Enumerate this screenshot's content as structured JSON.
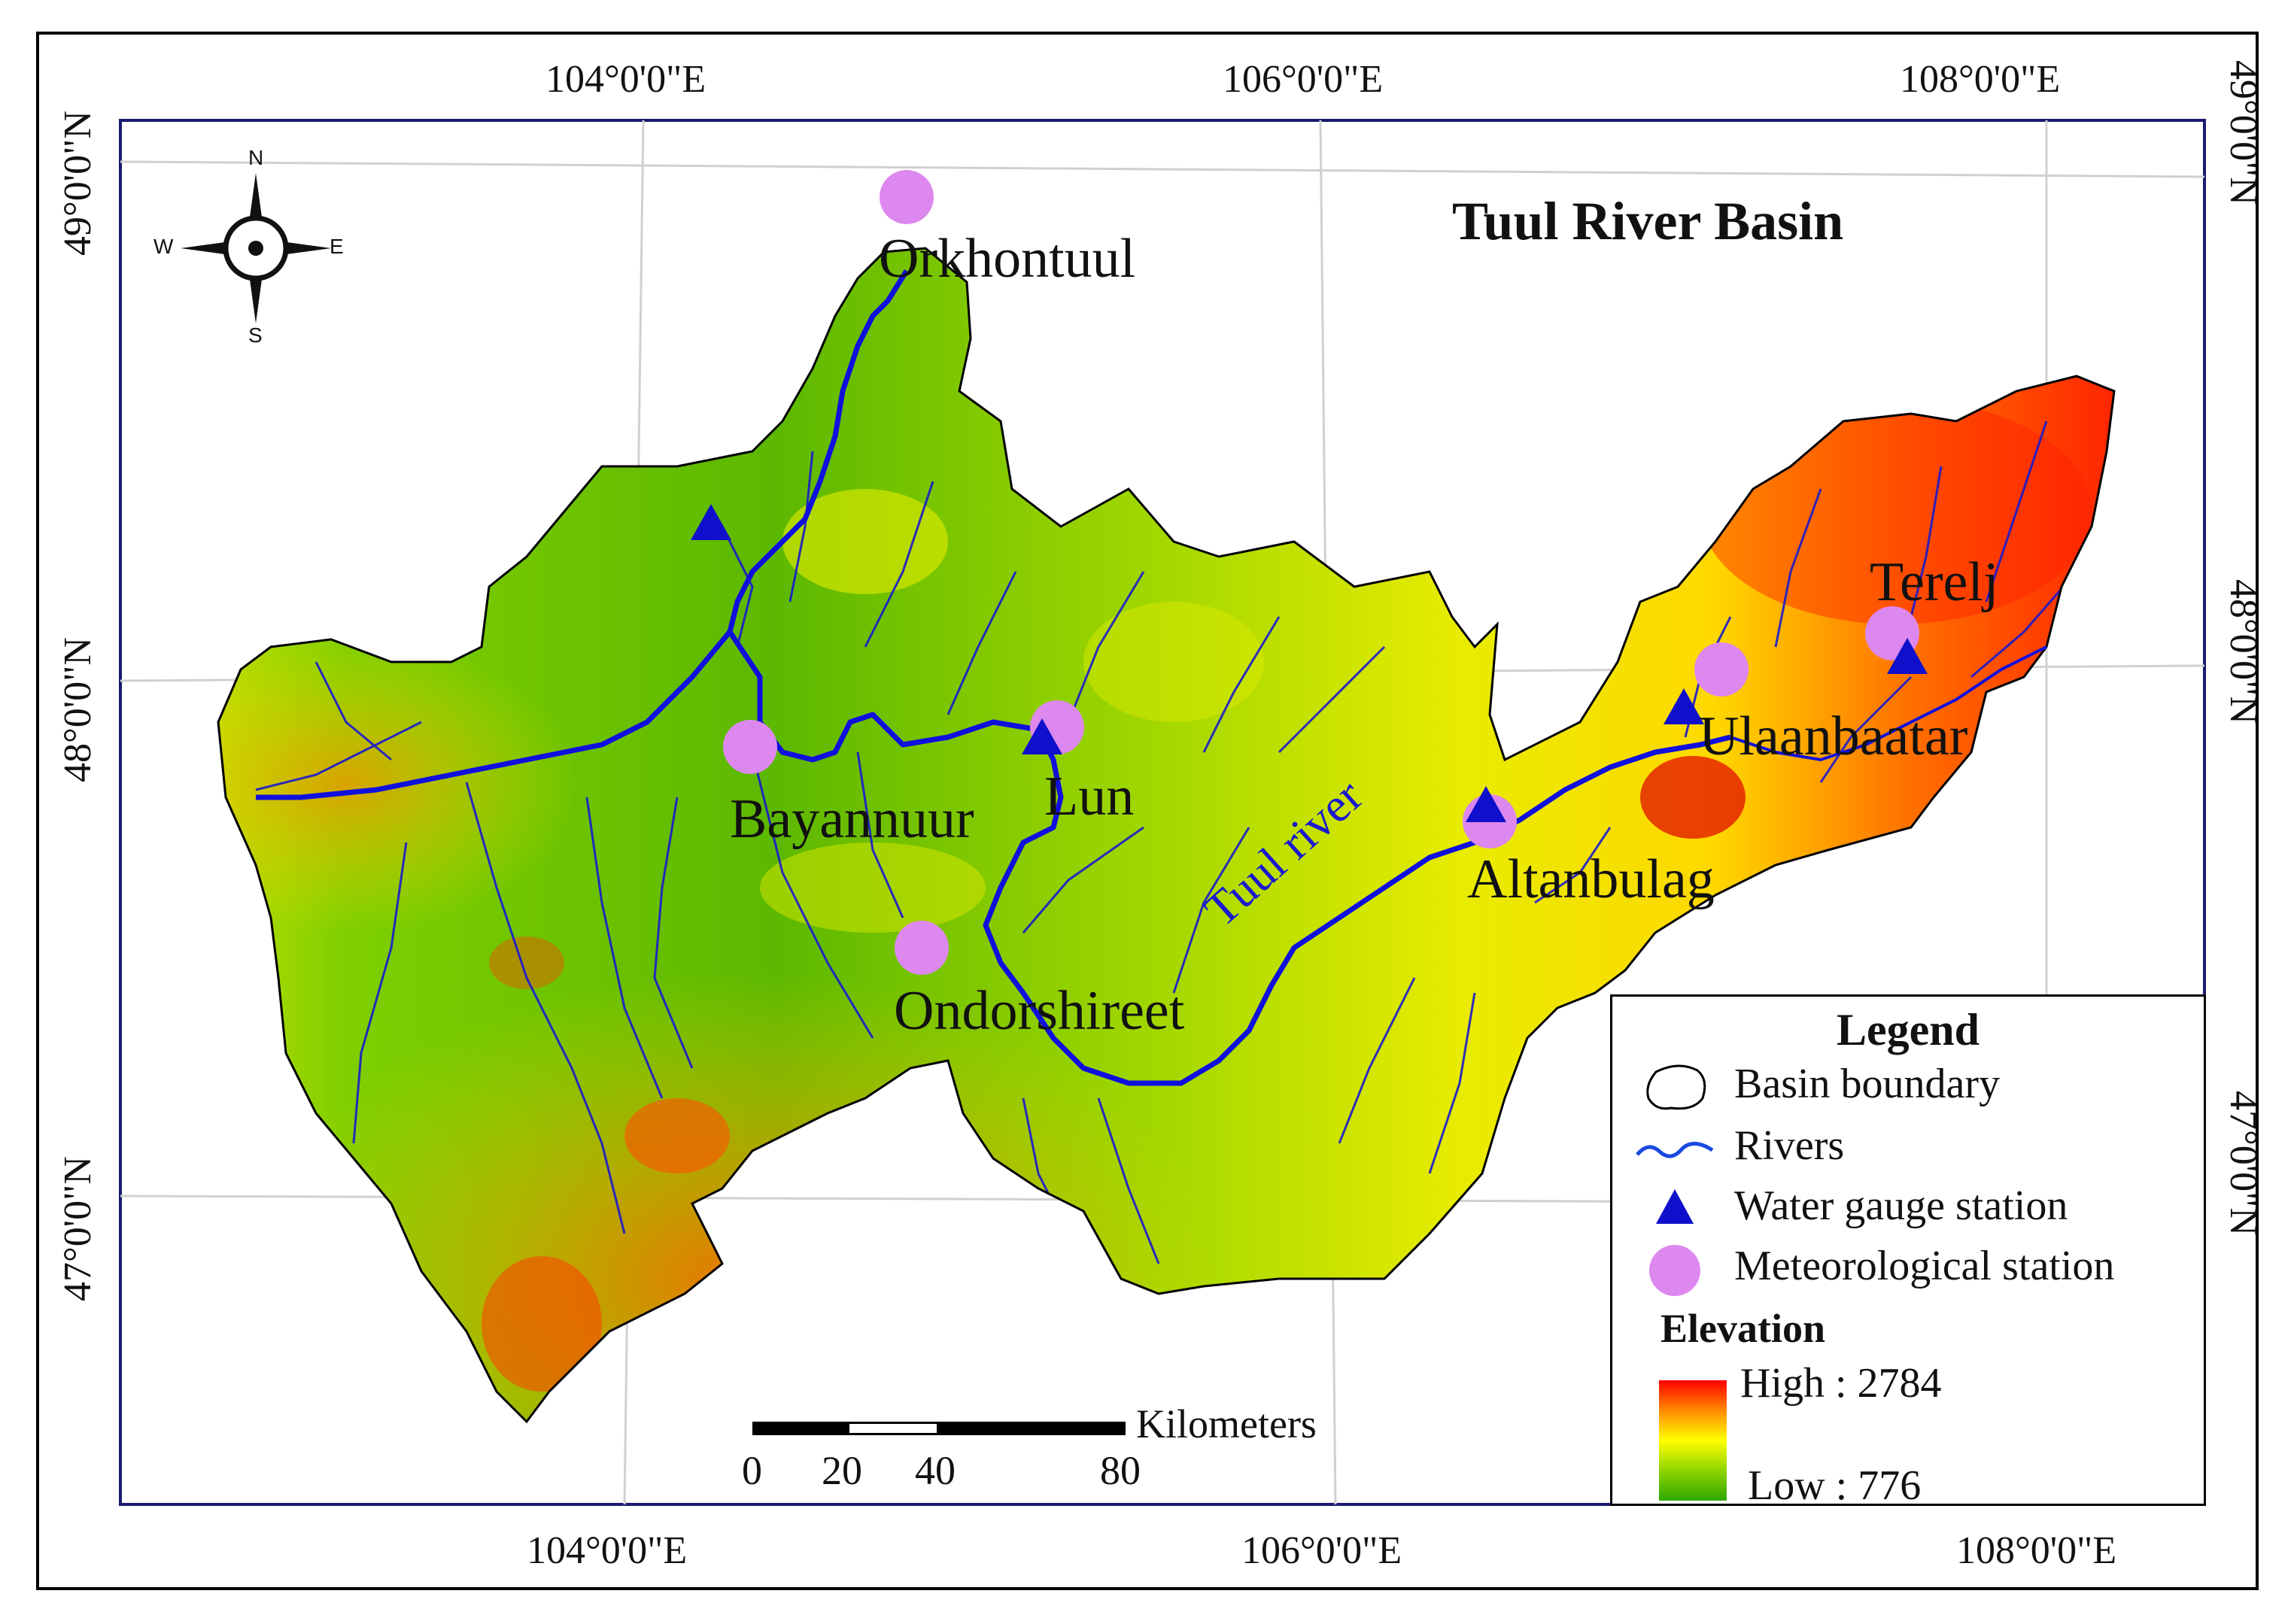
{
  "map": {
    "title": "Tuul River Basin",
    "river_label": "Tuul river",
    "top_longitudes": [
      "104°0'0\"E",
      "106°0'0\"E",
      "108°0'0\"E"
    ],
    "bottom_longitudes": [
      "104°0'0\"E",
      "106°0'0\"E",
      "108°0'0\"E"
    ],
    "left_latitudes": [
      "49°0'0\"N",
      "48°0'0\"N",
      "47°0'0\"N"
    ],
    "right_latitudes": [
      "49°0'0\"N",
      "48°0'0\"N",
      "47°0'0\"N"
    ],
    "stations": [
      {
        "name": "Orkhontuul",
        "type": "meteorological"
      },
      {
        "name": "Bayannuur",
        "type": "meteorological"
      },
      {
        "name": "Lun",
        "type": "meteorological+gauge"
      },
      {
        "name": "Ondorshireet",
        "type": "meteorological"
      },
      {
        "name": "Altanbulag",
        "type": "meteorological+gauge"
      },
      {
        "name": "Ulaanbaatar",
        "type": "meteorological+gauge"
      },
      {
        "name": "Terelj",
        "type": "meteorological+gauge"
      }
    ],
    "colors": {
      "river": "#1a1acc",
      "gauge": "#1010cc",
      "meteorological": "#dd88ee",
      "elevation_high": "#ff0000",
      "elevation_low": "#2ea800"
    }
  },
  "compass": {
    "n": "N",
    "s": "S",
    "e": "E",
    "w": "W",
    "icon": "compass-rose-icon"
  },
  "scale_bar": {
    "unit": "Kilometers",
    "ticks": [
      "0",
      "20",
      "40",
      "80"
    ]
  },
  "legend": {
    "title": "Legend",
    "items": [
      {
        "label": "Basin boundary",
        "icon": "basin-boundary-icon"
      },
      {
        "label": "Rivers",
        "icon": "river-line-icon"
      },
      {
        "label": "Water gauge station",
        "icon": "triangle-icon"
      },
      {
        "label": "Meteorological station",
        "icon": "circle-icon"
      }
    ],
    "elevation_title": "Elevation",
    "elevation_high": "High : 2784",
    "elevation_low": "Low : 776"
  }
}
